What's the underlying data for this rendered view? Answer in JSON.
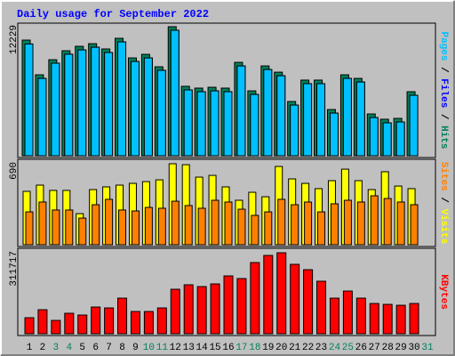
{
  "title": "Daily usage for September 2022",
  "categories": [
    "1",
    "2",
    "3",
    "4",
    "5",
    "6",
    "7",
    "8",
    "9",
    "10",
    "11",
    "12",
    "13",
    "14",
    "15",
    "16",
    "17",
    "18",
    "19",
    "20",
    "21",
    "22",
    "23",
    "24",
    "25",
    "26",
    "27",
    "28",
    "29",
    "30",
    "31"
  ],
  "category_colors": [
    "#000000",
    "#000000",
    "#00805c",
    "#00805c",
    "#000000",
    "#000000",
    "#000000",
    "#000000",
    "#000000",
    "#00805c",
    "#00805c",
    "#000000",
    "#000000",
    "#000000",
    "#000000",
    "#000000",
    "#00805c",
    "#00805c",
    "#000000",
    "#000000",
    "#000000",
    "#000000",
    "#000000",
    "#00805c",
    "#00805c",
    "#000000",
    "#000000",
    "#000000",
    "#000000",
    "#000000",
    "#00805c"
  ],
  "label_separator": " / ",
  "chart_data": [
    {
      "type": "bar",
      "ylim": [
        0,
        12229
      ],
      "yticks": [
        12229
      ],
      "series": [
        {
          "name": "Hits",
          "color": "#00805c",
          "values": [
            10960,
            7670,
            9100,
            9950,
            10370,
            10620,
            10120,
            11130,
            9270,
            9610,
            8430,
            12229,
            6580,
            6410,
            6490,
            6410,
            8850,
            6150,
            8510,
            7920,
            5140,
            7170,
            7170,
            4380,
            7670,
            7330,
            3960,
            3460,
            3540,
            6070,
            null
          ]
        },
        {
          "name": "Files",
          "color": "#0000ff",
          "values": [
            10590,
            7330,
            8770,
            9620,
            10030,
            10280,
            9780,
            10790,
            8930,
            9270,
            8090,
            11890,
            6240,
            6070,
            6150,
            6070,
            8510,
            5810,
            8170,
            7580,
            4800,
            6830,
            6830,
            4040,
            7330,
            6990,
            3620,
            3120,
            3200,
            5730,
            null
          ]
        },
        {
          "name": "Pages",
          "color": "#00c0ff",
          "values": [
            10590,
            7330,
            8770,
            9620,
            10030,
            10280,
            9780,
            10790,
            8930,
            9270,
            8090,
            11890,
            6240,
            6070,
            6150,
            6070,
            8510,
            5810,
            8170,
            7580,
            4800,
            6830,
            6830,
            4040,
            7330,
            6990,
            3620,
            3120,
            3200,
            5730,
            null
          ]
        }
      ]
    },
    {
      "type": "bar",
      "ylim": [
        0,
        690
      ],
      "yticks": [
        690
      ],
      "series": [
        {
          "name": "Visits",
          "color": "#ffff00",
          "values": [
            455,
            508,
            463,
            463,
            265,
            470,
            493,
            508,
            523,
            538,
            553,
            690,
            682,
            576,
            591,
            493,
            379,
            447,
            409,
            667,
            561,
            523,
            478,
            546,
            644,
            546,
            470,
            622,
            500,
            478,
            null
          ]
        },
        {
          "name": "Sites",
          "color": "#ff8000",
          "values": [
            280,
            364,
            296,
            296,
            227,
            341,
            387,
            296,
            288,
            318,
            311,
            371,
            334,
            311,
            379,
            364,
            303,
            250,
            280,
            387,
            341,
            364,
            280,
            349,
            379,
            364,
            417,
            394,
            364,
            341,
            null
          ]
        }
      ]
    },
    {
      "type": "bar",
      "ylim": [
        0,
        311717
      ],
      "yticks": [
        311717
      ],
      "series": [
        {
          "name": "KBytes",
          "color": "#ff0000",
          "values": [
            61660,
            92480,
            51380,
            78780,
            71930,
            102770,
            99330,
            137000,
            85630,
            85630,
            99330,
            171270,
            188400,
            181540,
            191820,
            222650,
            212370,
            274030,
            301430,
            311717,
            267180,
            246630,
            202100,
            137000,
            164420,
            137000,
            116460,
            113040,
            109610,
            116460,
            null
          ]
        }
      ]
    }
  ]
}
